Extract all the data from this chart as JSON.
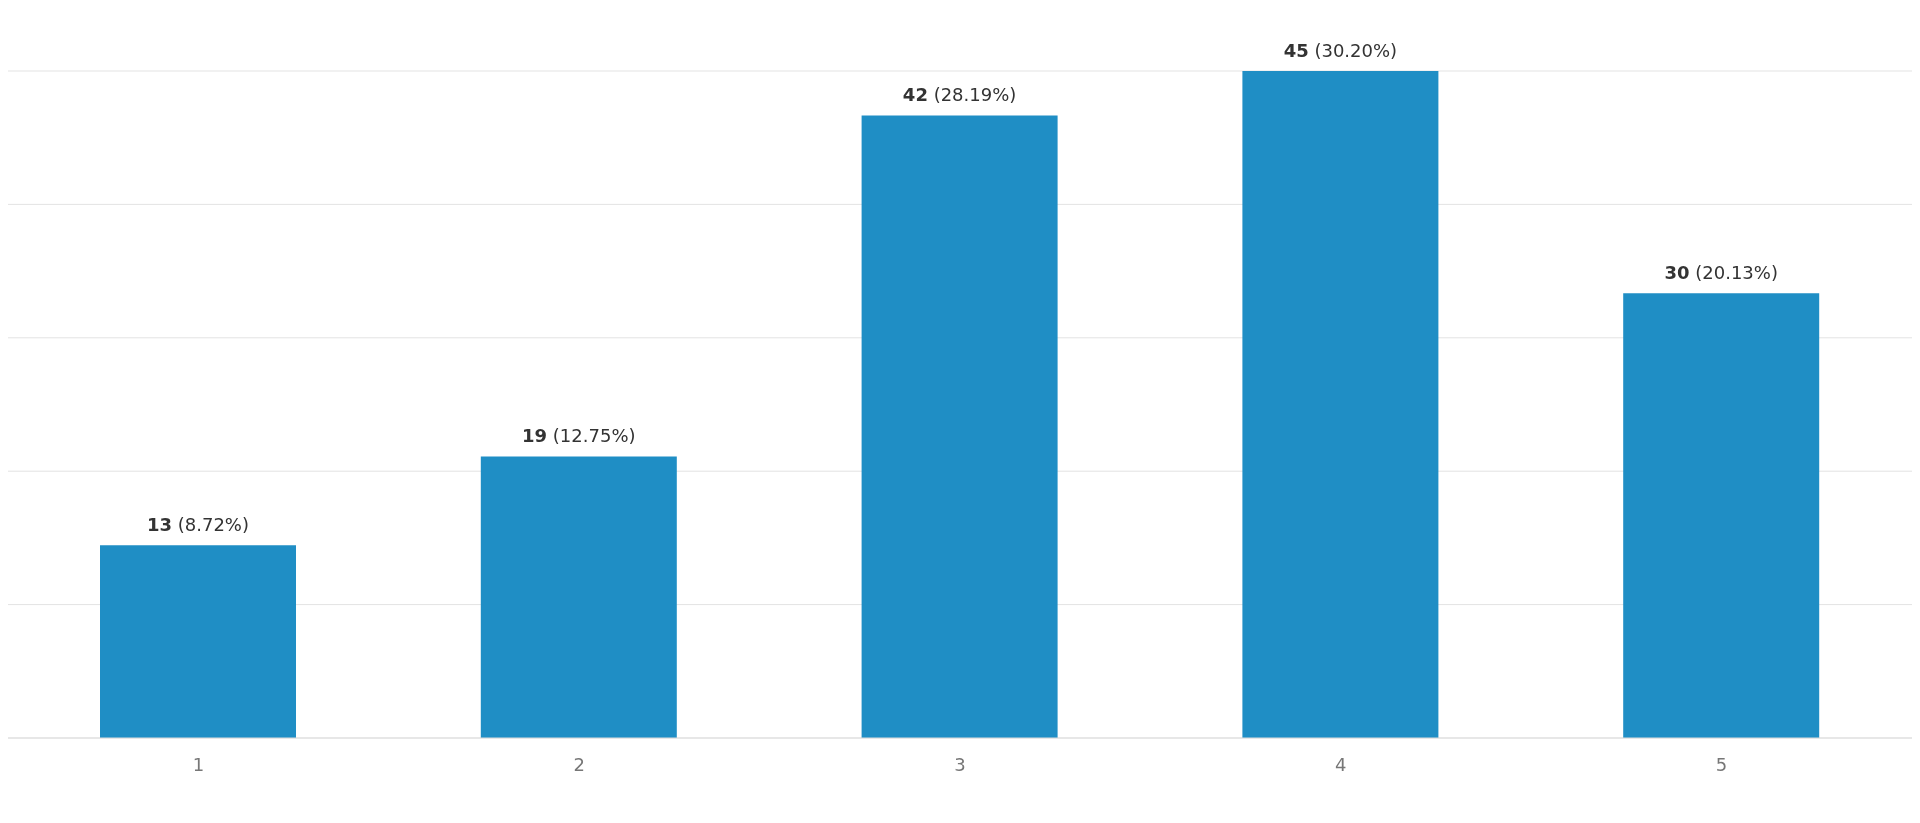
{
  "chart_data": {
    "type": "bar",
    "categories": [
      "1",
      "2",
      "3",
      "4",
      "5"
    ],
    "values": [
      13,
      19,
      42,
      45,
      30
    ],
    "color": "#1f8ec5",
    "value_labels": [
      "13 (8.72%)",
      "19 (12.75%)",
      "42 (28.19%)",
      "45 (30.20%)",
      "30 (20.13%)"
    ],
    "grid": "y",
    "tick_labels": "x",
    "legend": false
  }
}
